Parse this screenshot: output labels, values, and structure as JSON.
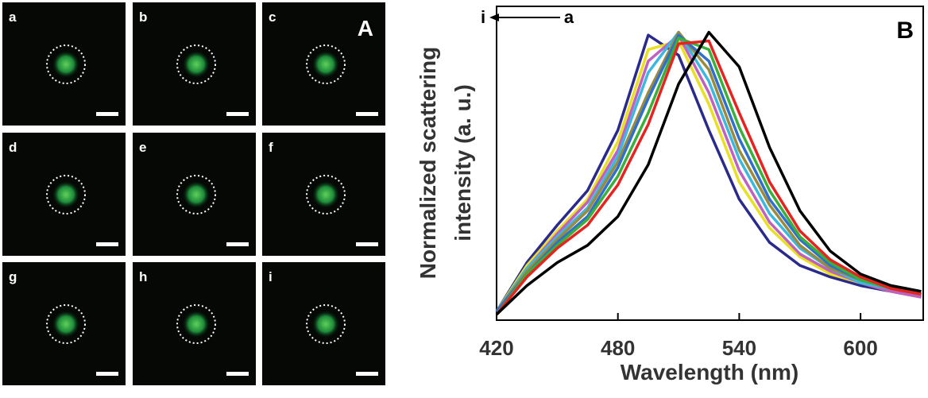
{
  "panel_a": {
    "label": "A",
    "images": [
      "a",
      "b",
      "c",
      "d",
      "e",
      "f",
      "g",
      "h",
      "i"
    ]
  },
  "chart_data": {
    "type": "line",
    "panel_label": "B",
    "xlabel": "Wavelength (nm)",
    "ylabel": [
      "Normalized scattering",
      "intensity (a. u.)"
    ],
    "annotations": [
      "i",
      "a"
    ],
    "x": [
      420,
      435,
      450,
      465,
      480,
      495,
      510,
      525,
      540,
      555,
      570,
      585,
      600,
      615,
      630
    ],
    "xlim": [
      420,
      631
    ],
    "xticks": [
      420,
      480,
      540,
      600
    ],
    "ylim": [
      0,
      1.09
    ],
    "series": [
      {
        "color": "#000000",
        "values": [
          0.02,
          0.12,
          0.2,
          0.26,
          0.36,
          0.54,
          0.82,
          1.0,
          0.88,
          0.6,
          0.38,
          0.24,
          0.16,
          0.12,
          0.1
        ]
      },
      {
        "color": "#e8221f",
        "values": [
          0.02,
          0.15,
          0.25,
          0.33,
          0.47,
          0.68,
          0.96,
          0.97,
          0.72,
          0.48,
          0.31,
          0.21,
          0.15,
          0.11,
          0.09
        ]
      },
      {
        "color": "#38b03a",
        "values": [
          0.02,
          0.16,
          0.26,
          0.35,
          0.5,
          0.72,
          0.98,
          0.94,
          0.67,
          0.45,
          0.29,
          0.2,
          0.14,
          0.11,
          0.09
        ]
      },
      {
        "color": "#2e6fd0",
        "values": [
          0.03,
          0.16,
          0.27,
          0.36,
          0.53,
          0.77,
          0.99,
          0.9,
          0.63,
          0.42,
          0.28,
          0.19,
          0.14,
          0.11,
          0.09
        ]
      },
      {
        "color": "#9a8a3c",
        "values": [
          0.03,
          0.17,
          0.28,
          0.38,
          0.55,
          0.79,
          1.0,
          0.87,
          0.59,
          0.4,
          0.26,
          0.18,
          0.14,
          0.11,
          0.09
        ]
      },
      {
        "color": "#3cb8e0",
        "values": [
          0.03,
          0.18,
          0.29,
          0.39,
          0.57,
          0.86,
          1.0,
          0.83,
          0.56,
          0.37,
          0.25,
          0.18,
          0.13,
          0.11,
          0.09
        ]
      },
      {
        "color": "#c060c0",
        "values": [
          0.03,
          0.18,
          0.3,
          0.41,
          0.59,
          0.9,
          0.99,
          0.79,
          0.52,
          0.34,
          0.23,
          0.17,
          0.13,
          0.1,
          0.08
        ]
      },
      {
        "color": "#e8e020",
        "values": [
          0.03,
          0.19,
          0.31,
          0.42,
          0.62,
          0.94,
          0.97,
          0.75,
          0.48,
          0.32,
          0.22,
          0.16,
          0.13,
          0.1,
          0.08
        ]
      },
      {
        "color": "#2a2a8c",
        "values": [
          0.03,
          0.2,
          0.33,
          0.45,
          0.66,
          0.99,
          0.92,
          0.66,
          0.42,
          0.27,
          0.19,
          0.15,
          0.12,
          0.1,
          0.08
        ]
      }
    ]
  }
}
